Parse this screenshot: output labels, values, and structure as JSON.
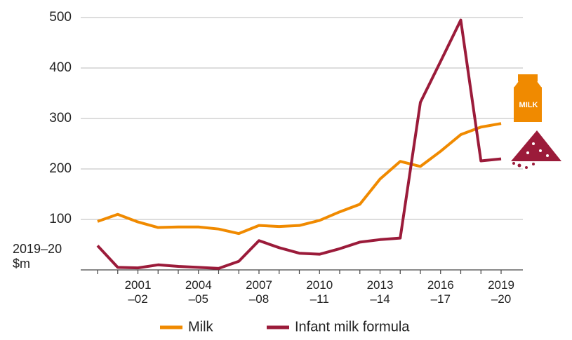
{
  "chart_data": {
    "type": "line",
    "y_axis_label": "2019–20\n$m",
    "categories": [
      null,
      null,
      "2001\n–02",
      null,
      null,
      "2004\n–05",
      null,
      null,
      "2007\n–08",
      null,
      null,
      "2010\n–11",
      null,
      null,
      "2013\n–14",
      null,
      null,
      "2016\n–17",
      null,
      null,
      "2019\n–20"
    ],
    "series": [
      {
        "name": "Milk",
        "color": "#f08a00",
        "values": [
          96,
          110,
          95,
          84,
          85,
          85,
          81,
          72,
          88,
          86,
          88,
          98,
          115,
          130,
          180,
          215,
          205,
          235,
          268,
          283,
          290
        ]
      },
      {
        "name": "Infant milk formula",
        "color": "#9b1b3a",
        "values": [
          48,
          5,
          4,
          10,
          7,
          5,
          3,
          17,
          58,
          44,
          33,
          31,
          42,
          55,
          60,
          63,
          332,
          413,
          495,
          216,
          220
        ]
      }
    ],
    "ylim": [
      0,
      500
    ],
    "yticks": [
      100,
      200,
      300,
      400,
      500
    ],
    "grid": true,
    "icon_label": "MILK"
  }
}
